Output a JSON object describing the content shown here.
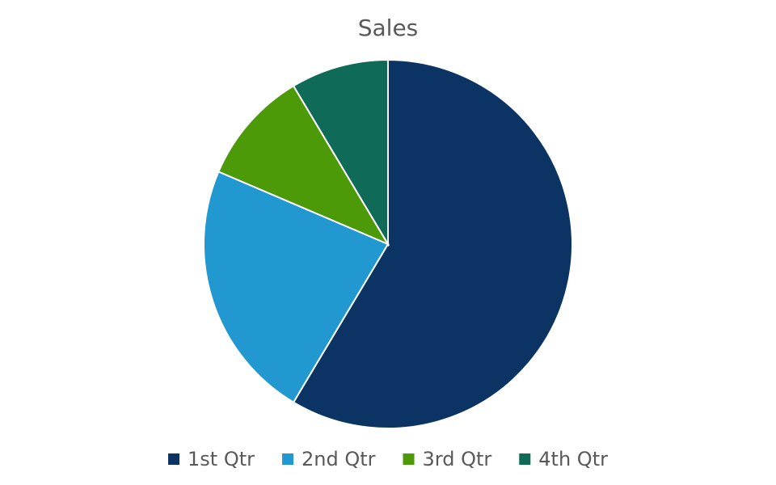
{
  "chart_data": {
    "type": "pie",
    "title": "Sales",
    "categories": [
      "1st Qtr",
      "2nd Qtr",
      "3rd Qtr",
      "4th Qtr"
    ],
    "values": [
      8.2,
      3.2,
      1.4,
      1.2
    ],
    "colors": [
      "#0b3363",
      "#2199d0",
      "#4d9a08",
      "#0f6b58"
    ],
    "legend": "bottom"
  }
}
